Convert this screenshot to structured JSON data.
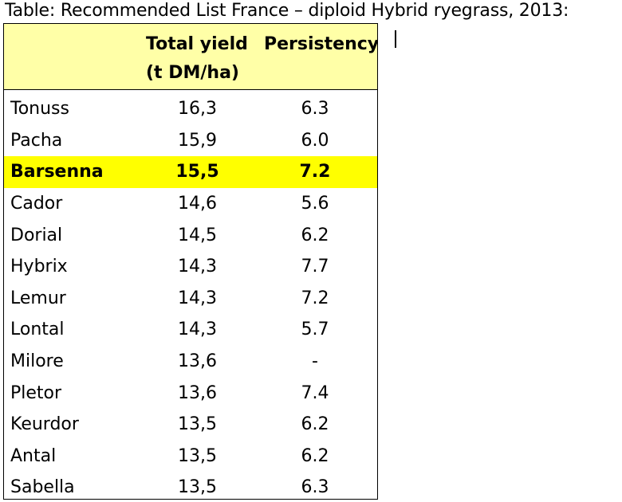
{
  "caption": "Table: Recommended List France – diploid Hybrid ryegrass, 2013:",
  "table": {
    "headers": {
      "variety": "",
      "yield_line1": "Total yield",
      "yield_line2": "(t DM/ha)",
      "persistency": "Persistency"
    },
    "header_bg": "#ffffa7",
    "highlight_color": "#ffff00",
    "rows": [
      {
        "name": "Tonuss",
        "yield": "16,3",
        "persistency": "6.3",
        "highlight": false
      },
      {
        "name": "Pacha",
        "yield": "15,9",
        "persistency": "6.0",
        "highlight": false
      },
      {
        "name": "Barsenna",
        "yield": "15,5",
        "persistency": "7.2",
        "highlight": true
      },
      {
        "name": "Cador",
        "yield": "14,6",
        "persistency": "5.6",
        "highlight": false
      },
      {
        "name": "Dorial",
        "yield": "14,5",
        "persistency": "6.2",
        "highlight": false
      },
      {
        "name": "Hybrix",
        "yield": "14,3",
        "persistency": "7.7",
        "highlight": false
      },
      {
        "name": "Lemur",
        "yield": "14,3",
        "persistency": "7.2",
        "highlight": false
      },
      {
        "name": "Lontal",
        "yield": "14,3",
        "persistency": "5.7",
        "highlight": false
      },
      {
        "name": "Milore",
        "yield": "13,6",
        "persistency": "-",
        "highlight": false
      },
      {
        "name": "Pletor",
        "yield": "13,6",
        "persistency": "7.4",
        "highlight": false
      },
      {
        "name": "Keurdor",
        "yield": "13,5",
        "persistency": "6.2",
        "highlight": false
      },
      {
        "name": "Antal",
        "yield": "13,5",
        "persistency": "6.2",
        "highlight": false
      },
      {
        "name": "Sabella",
        "yield": "13,5",
        "persistency": "6.3",
        "highlight": false
      }
    ]
  }
}
